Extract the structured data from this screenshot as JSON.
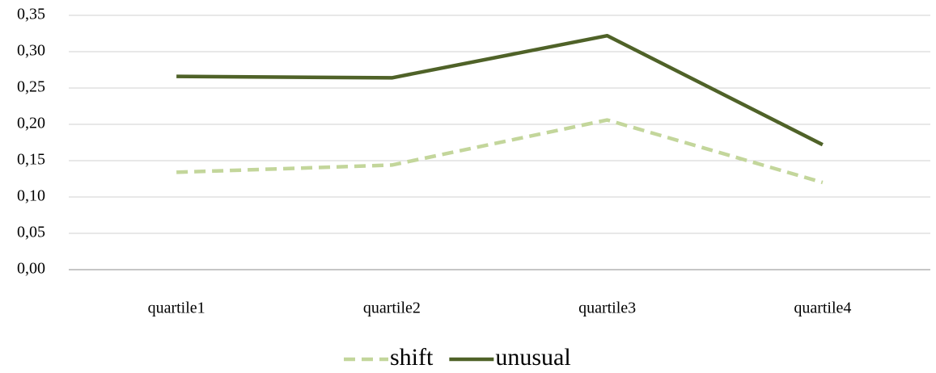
{
  "chart_data": {
    "type": "line",
    "categories": [
      "quartile1",
      "quartile2",
      "quartile3",
      "quartile4"
    ],
    "series": [
      {
        "name": "shift",
        "color": "#c3d69b",
        "line_style": "dashed",
        "values": [
          0.134,
          0.144,
          0.206,
          0.12
        ]
      },
      {
        "name": "unusual",
        "color": "#4f6228",
        "line_style": "solid",
        "values": [
          0.266,
          0.264,
          0.322,
          0.172
        ]
      }
    ],
    "ylim": [
      0,
      0.35
    ],
    "yticks": [
      {
        "value": 0,
        "label": "0,00"
      },
      {
        "value": 0.05,
        "label": "0,05"
      },
      {
        "value": 0.1,
        "label": "0,10"
      },
      {
        "value": 0.15,
        "label": "0,15"
      },
      {
        "value": 0.2,
        "label": "0,20"
      },
      {
        "value": 0.25,
        "label": "0,25"
      },
      {
        "value": 0.3,
        "label": "0,30"
      },
      {
        "value": 0.35,
        "label": "0,35"
      }
    ],
    "grid": true,
    "legend": "bottom"
  }
}
